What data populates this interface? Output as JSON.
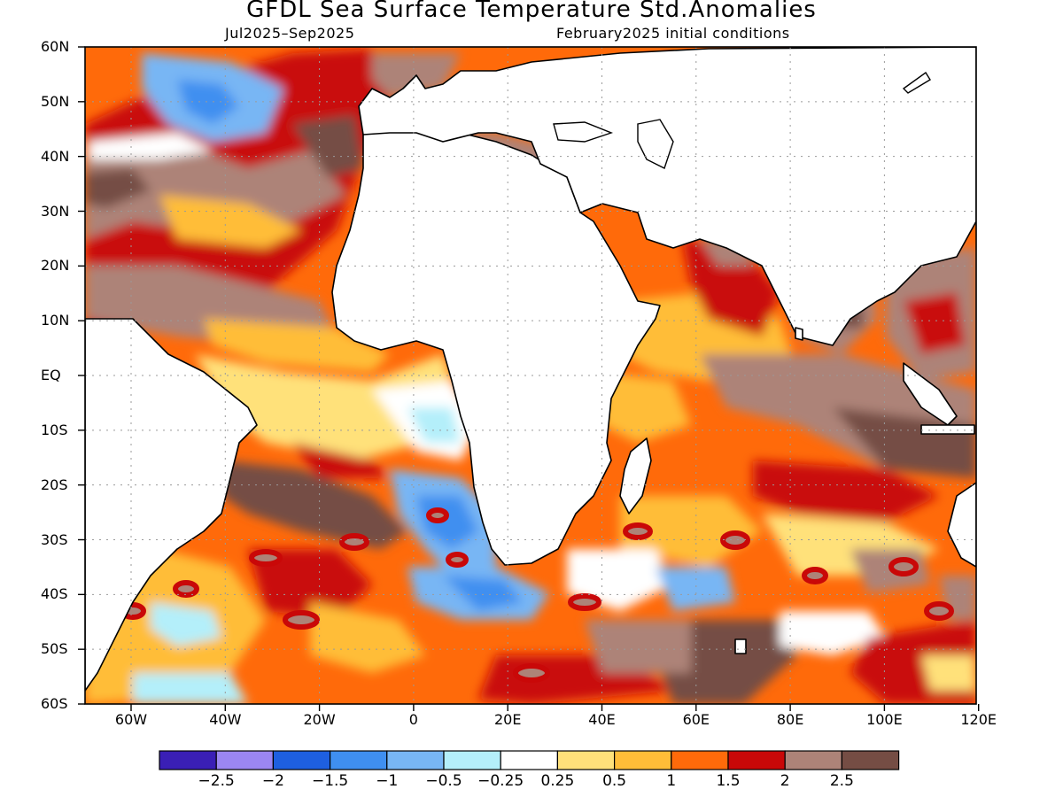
{
  "title": "GFDL Sea Surface Temperature Std.Anomalies",
  "subtitle_left": "Jul2025–Sep2025",
  "subtitle_right": "February2025 initial conditions",
  "lat_labels": [
    "60N",
    "50N",
    "40N",
    "30N",
    "20N",
    "10N",
    "EQ",
    "10S",
    "20S",
    "30S",
    "40S",
    "50S",
    "60S"
  ],
  "lon_labels": [
    "60W",
    "40W",
    "20W",
    "0",
    "20E",
    "40E",
    "60E",
    "80E",
    "100E",
    "120E"
  ],
  "colorbar": {
    "colors": [
      "#3a1fb5",
      "#9b86f2",
      "#1e5fe0",
      "#3f8ff0",
      "#78b6f4",
      "#b4effa",
      "#ffffff",
      "#ffe17a",
      "#ffbd38",
      "#ff6a0a",
      "#c90808",
      "#ad8378",
      "#754d44"
    ],
    "labels": [
      "−2.5",
      "−2",
      "−1.5",
      "−1",
      "−0.5",
      "−0.25",
      "0.25",
      "0.5",
      "1",
      "1.5",
      "2",
      "2.5"
    ]
  }
}
